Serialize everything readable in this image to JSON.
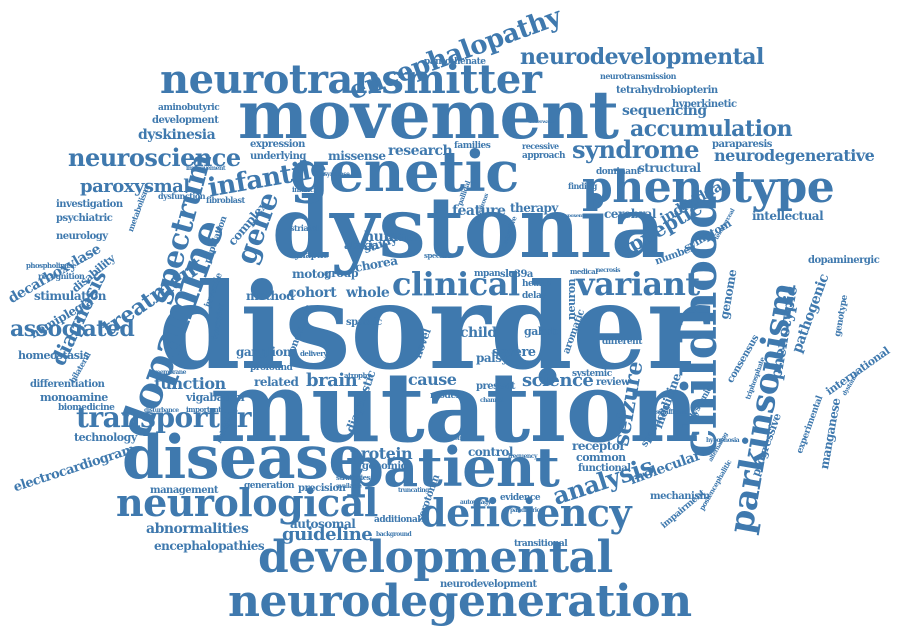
{
  "colors": {
    "word": "#3f79ae",
    "background": "#ffffff"
  },
  "words": [
    {
      "id": "disorder",
      "text": "disorder"
    },
    {
      "id": "mutation",
      "text": "mutation"
    },
    {
      "id": "dystonia",
      "text": "dystonia"
    },
    {
      "id": "movement",
      "text": "movement"
    },
    {
      "id": "disease",
      "text": "disease"
    },
    {
      "id": "patient",
      "text": "patient"
    },
    {
      "id": "genetic",
      "text": "genetic"
    },
    {
      "id": "neurodegeneration",
      "text": "neurodegeneration"
    },
    {
      "id": "developmental",
      "text": "developmental"
    },
    {
      "id": "neurotransmitter",
      "text": "neurotransmitter"
    },
    {
      "id": "phenotype",
      "text": "phenotype"
    },
    {
      "id": "childhood",
      "text": "childhood"
    },
    {
      "id": "parkinsonism",
      "text": "parkinsonism"
    },
    {
      "id": "dopamine",
      "text": "dopamine"
    },
    {
      "id": "neurological",
      "text": "neurological"
    },
    {
      "id": "deficiency",
      "text": "deficiency"
    },
    {
      "id": "encephalopathy",
      "text": "encephalopathy"
    },
    {
      "id": "neurodevelopmental",
      "text": "neurodevelopmental"
    },
    {
      "id": "clinical",
      "text": "clinical"
    },
    {
      "id": "variant",
      "text": "variant"
    },
    {
      "id": "neuroscience",
      "text": "neuroscience"
    },
    {
      "id": "syndrome",
      "text": "syndrome"
    },
    {
      "id": "accumulation",
      "text": "accumulation"
    },
    {
      "id": "neurodegenerative",
      "text": "neurodegenerative"
    },
    {
      "id": "spectrum",
      "text": "spectrum"
    },
    {
      "id": "transporter",
      "text": "transporter"
    },
    {
      "id": "analysis",
      "text": "analysis"
    },
    {
      "id": "infantile",
      "text": "infantile"
    },
    {
      "id": "gene",
      "text": "gene"
    },
    {
      "id": "paroxysmal",
      "text": "paroxysmal"
    },
    {
      "id": "associated",
      "text": "associated"
    },
    {
      "id": "diagnosis",
      "text": "diagnosis"
    },
    {
      "id": "treatment",
      "text": "treatment"
    },
    {
      "id": "epileptic",
      "text": "epileptic"
    },
    {
      "id": "seizure",
      "text": "seizure"
    },
    {
      "id": "function",
      "text": "function"
    },
    {
      "id": "brain",
      "text": "brain"
    },
    {
      "id": "cause",
      "text": "cause"
    },
    {
      "id": "science",
      "text": "science"
    },
    {
      "id": "protein",
      "text": "protein"
    },
    {
      "id": "guideline",
      "text": "guideline"
    },
    {
      "id": "abnormalities",
      "text": "abnormalities"
    },
    {
      "id": "autosomal",
      "text": "autosomal"
    },
    {
      "id": "encephalopathies",
      "text": "encephalopathies"
    },
    {
      "id": "management",
      "text": "management"
    },
    {
      "id": "sequencing",
      "text": "sequencing"
    },
    {
      "id": "research",
      "text": "research"
    },
    {
      "id": "feature",
      "text": "feature"
    },
    {
      "id": "therapy",
      "text": "therapy"
    },
    {
      "id": "cerebral",
      "text": "cerebral"
    },
    {
      "id": "individual",
      "text": "individual"
    },
    {
      "id": "intellectual",
      "text": "intellectual"
    },
    {
      "id": "molecular",
      "text": "molecular"
    },
    {
      "id": "pathogenic",
      "text": "pathogenic"
    },
    {
      "id": "phenotypic",
      "text": "phenotypic"
    },
    {
      "id": "genome",
      "text": "genome"
    },
    {
      "id": "manganese",
      "text": "manganese"
    },
    {
      "id": "progressive",
      "text": "progressive"
    },
    {
      "id": "international",
      "text": "international"
    },
    {
      "id": "dopaminergic",
      "text": "dopaminergic"
    },
    {
      "id": "medicine",
      "text": "medicine"
    },
    {
      "id": "cohort",
      "text": "cohort"
    },
    {
      "id": "whole",
      "text": "whole"
    },
    {
      "id": "complex",
      "text": "complex"
    },
    {
      "id": "human",
      "text": "human"
    },
    {
      "id": "study",
      "text": "study"
    },
    {
      "id": "chorea",
      "text": "chorea"
    },
    {
      "id": "ataxia",
      "text": "ataxia"
    },
    {
      "id": "motor",
      "text": "motor"
    },
    {
      "id": "group",
      "text": "group"
    },
    {
      "id": "method",
      "text": "method"
    },
    {
      "id": "related",
      "text": "related"
    },
    {
      "id": "stimulation",
      "text": "stimulation"
    },
    {
      "id": "hemiplegia",
      "text": "hemiplegia"
    },
    {
      "id": "homeostasis",
      "text": "homeostasis"
    },
    {
      "id": "decarboxylase",
      "text": "decarboxylase"
    },
    {
      "id": "disability",
      "text": "disability"
    },
    {
      "id": "neurology",
      "text": "neurology"
    },
    {
      "id": "psychiatric",
      "text": "psychiatric"
    },
    {
      "id": "investigation",
      "text": "investigation"
    },
    {
      "id": "dyskinesia",
      "text": "dyskinesia"
    },
    {
      "id": "development",
      "text": "development"
    },
    {
      "id": "expression",
      "text": "expression"
    },
    {
      "id": "underlying",
      "text": "underlying"
    },
    {
      "id": "missense",
      "text": "missense"
    },
    {
      "id": "aminobutyric",
      "text": "aminobutyric"
    },
    {
      "id": "pantothenate",
      "text": "pantothenate"
    },
    {
      "id": "neurotransmission",
      "text": "neurotransmission"
    },
    {
      "id": "tetrahydrobiopterin",
      "text": "tetrahydrobiopterin"
    },
    {
      "id": "hyperkinetic",
      "text": "hyperkinetic"
    },
    {
      "id": "structural",
      "text": "structural"
    },
    {
      "id": "paraparesis",
      "text": "paraparesis"
    },
    {
      "id": "dominant",
      "text": "dominant"
    },
    {
      "id": "approach",
      "text": "approach"
    },
    {
      "id": "recessive",
      "text": "recessive"
    },
    {
      "id": "families",
      "text": "families"
    },
    {
      "id": "differentiation",
      "text": "differentiation"
    },
    {
      "id": "monoamine",
      "text": "monoamine"
    },
    {
      "id": "biomedicine",
      "text": "biomedicine"
    },
    {
      "id": "vigabatrin",
      "text": "vigabatrin"
    },
    {
      "id": "technology",
      "text": "technology"
    },
    {
      "id": "electrocardiogram",
      "text": "electrocardiogram"
    },
    {
      "id": "ganglion",
      "text": "ganglion"
    },
    {
      "id": "conclusion",
      "text": "conclusion"
    },
    {
      "id": "control",
      "text": "control"
    },
    {
      "id": "receptor",
      "text": "receptor"
    },
    {
      "id": "common",
      "text": "common"
    },
    {
      "id": "functional",
      "text": "functional"
    },
    {
      "id": "mechanism",
      "text": "mechanism"
    },
    {
      "id": "genomic",
      "text": "genomic"
    },
    {
      "id": "precision",
      "text": "precision"
    },
    {
      "id": "generation",
      "text": "generation"
    },
    {
      "id": "additional",
      "text": "additional"
    },
    {
      "id": "evidence",
      "text": "evidence"
    },
    {
      "id": "transitional",
      "text": "transitional"
    },
    {
      "id": "neurodevelopment",
      "text": "neurodevelopment"
    },
    {
      "id": "review",
      "text": "review"
    },
    {
      "id": "systemic",
      "text": "systemic"
    },
    {
      "id": "aromatic",
      "text": "aromatic"
    },
    {
      "id": "neuron",
      "text": "neuron"
    },
    {
      "id": "severe",
      "text": "severe"
    },
    {
      "id": "different",
      "text": "different"
    },
    {
      "id": "child",
      "text": "child"
    },
    {
      "id": "palsy",
      "text": "palsy"
    },
    {
      "id": "novel",
      "text": "novel"
    },
    {
      "id": "present",
      "text": "present"
    },
    {
      "id": "model",
      "text": "model"
    },
    {
      "id": "health",
      "text": "health"
    },
    {
      "id": "delay",
      "text": "delay"
    },
    {
      "id": "gabrb",
      "text": "gabrb"
    },
    {
      "id": "spastic",
      "text": "spastic"
    },
    {
      "id": "slc39a",
      "text": "slc39a"
    },
    {
      "id": "mpan",
      "text": "mpan"
    },
    {
      "id": "number",
      "text": "number"
    },
    {
      "id": "symptom",
      "text": "symptom"
    },
    {
      "id": "spasticity",
      "text": "spasticity"
    },
    {
      "id": "experimental",
      "text": "experimental"
    },
    {
      "id": "dystonic",
      "text": "dystonic"
    },
    {
      "id": "strategies",
      "text": "strategies"
    },
    {
      "id": "diagnostic",
      "text": "diagnostic"
    },
    {
      "id": "serotonin",
      "text": "serotonin"
    },
    {
      "id": "synaptic",
      "text": "synaptic"
    },
    {
      "id": "juvenile",
      "text": "juvenile"
    },
    {
      "id": "population",
      "text": "population"
    },
    {
      "id": "striatal",
      "text": "striatal"
    },
    {
      "id": "fibroblast",
      "text": "fibroblast"
    },
    {
      "id": "dysfunction",
      "text": "dysfunction"
    },
    {
      "id": "finding",
      "text": "finding"
    },
    {
      "id": "consensus",
      "text": "consensus"
    },
    {
      "id": "genotype",
      "text": "genotype"
    },
    {
      "id": "impairment",
      "text": "impairment"
    },
    {
      "id": "significant",
      "text": "significant"
    },
    {
      "id": "atrophy",
      "text": "atrophy"
    },
    {
      "id": "profound",
      "text": "profound"
    },
    {
      "id": "infancy",
      "text": "infancy"
    },
    {
      "id": "recognition",
      "text": "recognition"
    },
    {
      "id": "phospholipase",
      "text": "phospholipase"
    },
    {
      "id": "delivery",
      "text": "delivery"
    },
    {
      "id": "frequency",
      "text": "frequency"
    },
    {
      "id": "autophagy",
      "text": "autophagy"
    },
    {
      "id": "pallidal",
      "text": "pallidal"
    },
    {
      "id": "metabolism",
      "text": "metabolism"
    },
    {
      "id": "bilateral",
      "text": "bilateral"
    },
    {
      "id": "therapies",
      "text": "therapies"
    },
    {
      "id": "membrane",
      "text": "membrane"
    },
    {
      "id": "important",
      "text": "important"
    },
    {
      "id": "disturbance",
      "text": "disturbance"
    },
    {
      "id": "phlorigetic",
      "text": "phlorigetic"
    },
    {
      "id": "background",
      "text": "background"
    },
    {
      "id": "pandiatric",
      "text": "pandiatric"
    },
    {
      "id": "truncating",
      "text": "truncating"
    },
    {
      "id": "available",
      "text": "available"
    },
    {
      "id": "specific",
      "text": "specific"
    },
    {
      "id": "causative",
      "text": "causative"
    },
    {
      "id": "hypophosia",
      "text": "hypophosia"
    },
    {
      "id": "triphosphate",
      "text": "triphosphate"
    },
    {
      "id": "postencephalitic",
      "text": "postencephalitic"
    },
    {
      "id": "telomerceal",
      "text": "telomerceal"
    },
    {
      "id": "dystonias",
      "text": "dystonias"
    },
    {
      "id": "alternating",
      "text": "alternating"
    },
    {
      "id": "medical",
      "text": "medical"
    },
    {
      "id": "necrosis",
      "text": "necrosis"
    },
    {
      "id": "hypoxemia",
      "text": "hypoxemia"
    },
    {
      "id": "improvement",
      "text": "improvement"
    },
    {
      "id": "anhydrous",
      "text": "anhydrous"
    },
    {
      "id": "synthase",
      "text": "synthase"
    },
    {
      "id": "channel",
      "text": "channel"
    },
    {
      "id": "condition",
      "text": "condition"
    },
    {
      "id": "underwater",
      "text": "underwater"
    }
  ]
}
